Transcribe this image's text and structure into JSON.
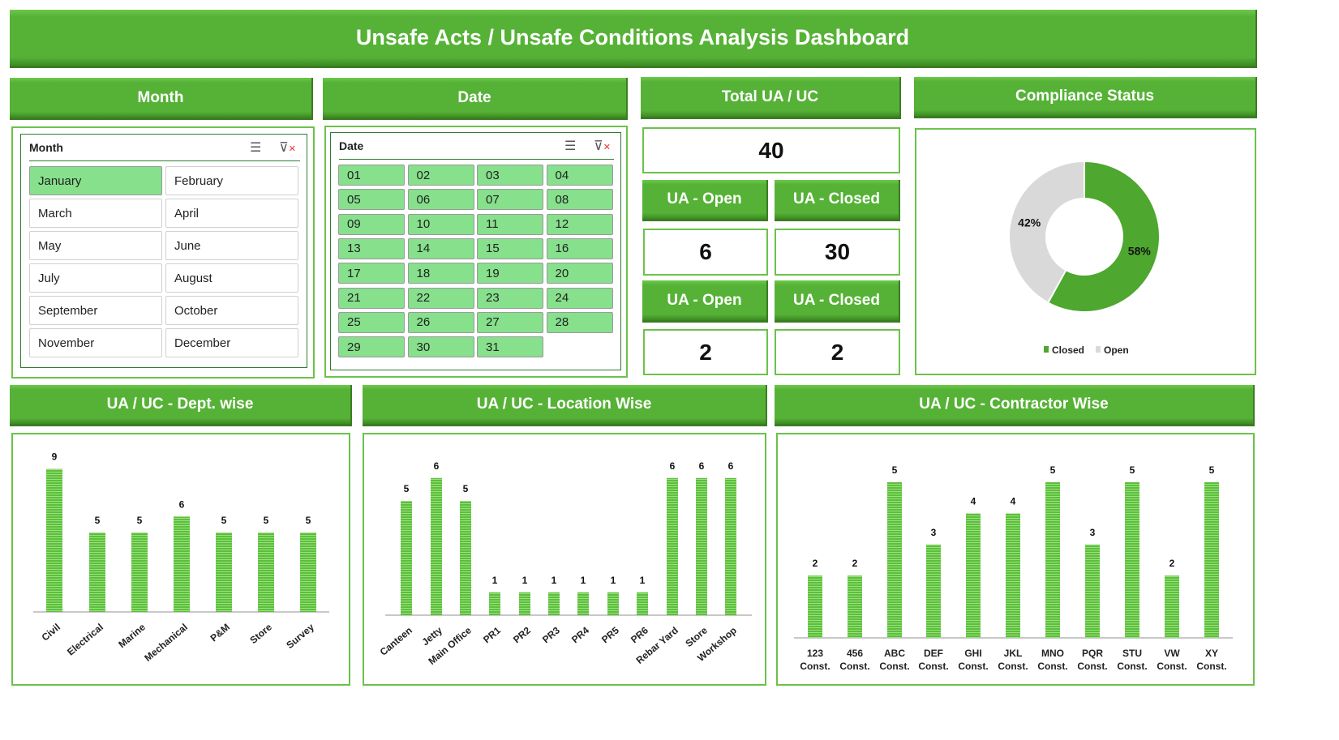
{
  "title": "Unsafe Acts / Unsafe Conditions Analysis Dashboard",
  "headers": {
    "month": "Month",
    "date": "Date",
    "total": "Total UA / UC",
    "compliance": "Compliance Status",
    "dept": "UA / UC - Dept. wise",
    "location": "UA / UC - Location Wise",
    "contractor": "UA / UC - Contractor Wise"
  },
  "month_slicer": {
    "title": "Month",
    "selected": "January",
    "items": [
      "January",
      "February",
      "March",
      "April",
      "May",
      "June",
      "July",
      "August",
      "September",
      "October",
      "November",
      "December"
    ]
  },
  "date_slicer": {
    "title": "Date",
    "items": [
      "01",
      "02",
      "03",
      "04",
      "05",
      "06",
      "07",
      "08",
      "09",
      "10",
      "11",
      "12",
      "13",
      "14",
      "15",
      "16",
      "17",
      "18",
      "19",
      "20",
      "21",
      "22",
      "23",
      "24",
      "25",
      "26",
      "27",
      "28",
      "29",
      "30",
      "31"
    ]
  },
  "kpi": {
    "total": "40",
    "row1": {
      "open_label": "UA - Open",
      "closed_label": "UA - Closed",
      "open": "6",
      "closed": "30"
    },
    "row2": {
      "open_label": "UA - Open",
      "closed_label": "UA - Closed",
      "open": "2",
      "closed": "2"
    }
  },
  "colors": {
    "accent": "#56b236",
    "bar": "#5cbf3c",
    "open": "#d9d9d9",
    "closed": "#4ea72e"
  },
  "chart_data": [
    {
      "type": "pie",
      "donut": true,
      "categories": [
        "Closed",
        "Open"
      ],
      "values": [
        58,
        42
      ],
      "labels": [
        "58%",
        "42%"
      ],
      "legend": "bottom"
    },
    {
      "type": "bar",
      "categories": [
        "Civil",
        "Electrical",
        "Marine",
        "Mechanical",
        "P&M",
        "Store",
        "Survey"
      ],
      "values": [
        9,
        5,
        5,
        6,
        5,
        5,
        5
      ]
    },
    {
      "type": "bar",
      "categories": [
        "Canteen",
        "Jetty",
        "Main Office",
        "PR1",
        "PR2",
        "PR3",
        "PR4",
        "PR5",
        "PR6",
        "Rebar Yard",
        "Store",
        "Workshop"
      ],
      "values": [
        5,
        6,
        5,
        1,
        1,
        1,
        1,
        1,
        1,
        6,
        6,
        6
      ]
    },
    {
      "type": "bar",
      "categories": [
        "123 Const.",
        "456 Const.",
        "ABC Const.",
        "DEF Const.",
        "GHI Const.",
        "JKL Const.",
        "MNO Const.",
        "PQR Const.",
        "STU Const.",
        "VW Const.",
        "XY Const."
      ],
      "values": [
        2,
        2,
        5,
        3,
        4,
        4,
        5,
        3,
        5,
        2,
        5
      ]
    }
  ]
}
